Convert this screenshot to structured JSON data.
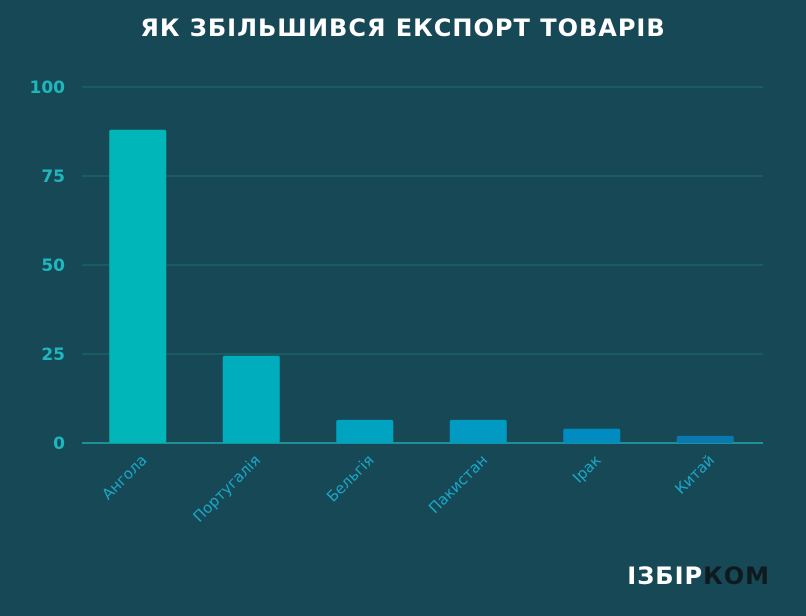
{
  "chart_data": {
    "type": "bar",
    "title": "ЯК ЗБІЛЬШИВСЯ ЕКСПОРТ ТОВАРІВ",
    "categories": [
      "Ангола",
      "Португалія",
      "Бельгія",
      "Пакистан",
      "Ірак",
      "Китай"
    ],
    "values": [
      88,
      24.5,
      6.5,
      6.5,
      4,
      2
    ],
    "ylim": [
      0,
      100
    ],
    "yticks": [
      0,
      25,
      50,
      75,
      100
    ],
    "grid": true,
    "colors": [
      "#00b6b8",
      "#00adbd",
      "#00a4c0",
      "#009ac2",
      "#008cc0",
      "#0a79b0"
    ],
    "gridline_color": "#1d6d6e",
    "baseline_color": "#20a8ad"
  },
  "logo": {
    "part1": "ІЗБІР",
    "part2": "КОМ"
  }
}
